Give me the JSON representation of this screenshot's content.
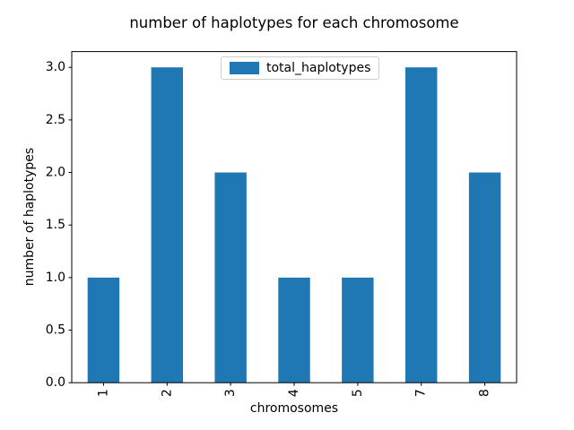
{
  "chart_data": {
    "type": "bar",
    "title": "number of haplotypes for each chromosome",
    "xlabel": "chromosomes",
    "ylabel": "number of haplotypes",
    "categories": [
      "1",
      "2",
      "3",
      "4",
      "5",
      "7",
      "8"
    ],
    "series": [
      {
        "name": "total_haplotypes",
        "values": [
          1,
          3,
          2,
          1,
          1,
          3,
          2
        ]
      }
    ],
    "ylim": [
      0,
      3.15
    ],
    "yticks": [
      0.0,
      0.5,
      1.0,
      1.5,
      2.0,
      2.5,
      3.0
    ],
    "xtick_rotation_deg": 90,
    "bar_color": "#1f77b4",
    "axis_color": "#000000",
    "legend": {
      "position": "upper center",
      "border_color": "#cccccc",
      "entries": [
        "total_haplotypes"
      ]
    },
    "grid": false
  }
}
